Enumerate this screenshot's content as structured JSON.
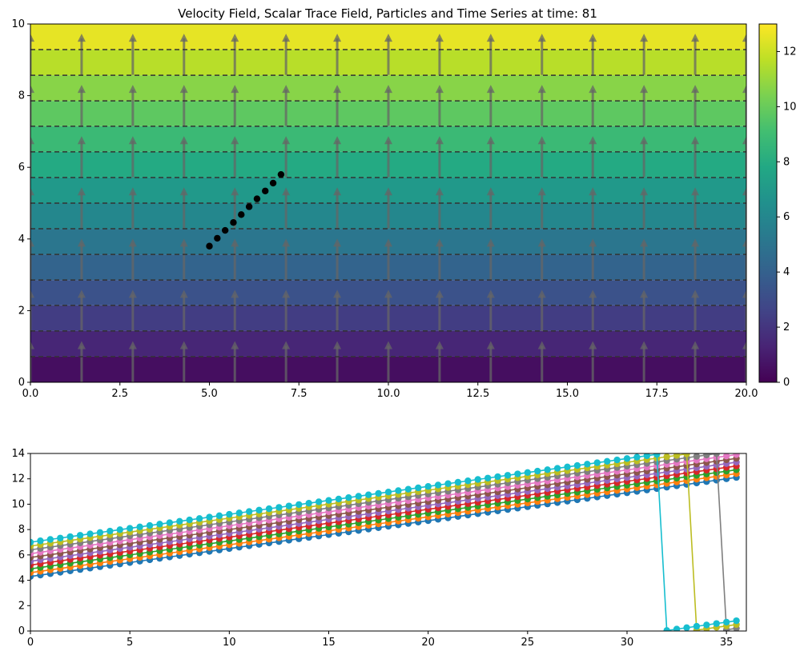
{
  "chart_data": [
    {
      "type": "heatmap",
      "title": "Velocity Field, Scalar Trace Field, Particles and Time Series at time: 81",
      "xlim": [
        0,
        20
      ],
      "ylim": [
        0,
        10
      ],
      "x_ticks": [
        "0.0",
        "2.5",
        "5.0",
        "7.5",
        "10.0",
        "12.5",
        "15.0",
        "17.5",
        "20.0"
      ],
      "y_ticks": [
        "0",
        "2",
        "4",
        "6",
        "8",
        "10"
      ],
      "colormap": "viridis",
      "colorbar_range": [
        0,
        13
      ],
      "colorbar_ticks": [
        "0",
        "2",
        "4",
        "6",
        "8",
        "10",
        "12"
      ],
      "contour_levels": [
        0.93,
        1.86,
        2.79,
        3.71,
        4.64,
        5.57,
        6.5,
        7.43,
        8.36,
        9.29,
        10.21,
        11.14,
        12.07
      ],
      "contour_color": "#333333",
      "arrow_color": "#666666",
      "arrow_x": [
        0,
        1.43,
        2.86,
        4.29,
        5.71,
        7.14,
        8.57,
        10.0,
        11.43,
        12.86,
        14.29,
        15.71,
        17.14,
        18.57,
        20.0
      ],
      "particles": {
        "color": "#000000",
        "x": [
          5.0,
          5.22,
          5.44,
          5.67,
          5.89,
          6.11,
          6.33,
          6.56,
          6.78,
          7.0
        ],
        "y": [
          3.8,
          4.02,
          4.24,
          4.46,
          4.68,
          4.9,
          5.12,
          5.34,
          5.56,
          5.8
        ]
      }
    },
    {
      "type": "line",
      "xlim": [
        0,
        36
      ],
      "ylim": [
        0,
        14
      ],
      "x_ticks": [
        "0",
        "5",
        "10",
        "15",
        "20",
        "25",
        "30",
        "35"
      ],
      "y_ticks": [
        "0",
        "2",
        "4",
        "6",
        "8",
        "10",
        "12",
        "14"
      ],
      "slope_per_step": 0.22,
      "wrap_max": 14,
      "series": [
        {
          "color": "#1f77b4",
          "start": 4.3
        },
        {
          "color": "#ff7f0e",
          "start": 4.6
        },
        {
          "color": "#2ca02c",
          "start": 4.9
        },
        {
          "color": "#d62728",
          "start": 5.2
        },
        {
          "color": "#9467bd",
          "start": 5.5
        },
        {
          "color": "#8c564b",
          "start": 5.8
        },
        {
          "color": "#e377c2",
          "start": 6.1
        },
        {
          "color": "#7f7f7f",
          "start": 6.4
        },
        {
          "color": "#bcbd22",
          "start": 6.7
        },
        {
          "color": "#17becf",
          "start": 7.0
        }
      ]
    }
  ]
}
